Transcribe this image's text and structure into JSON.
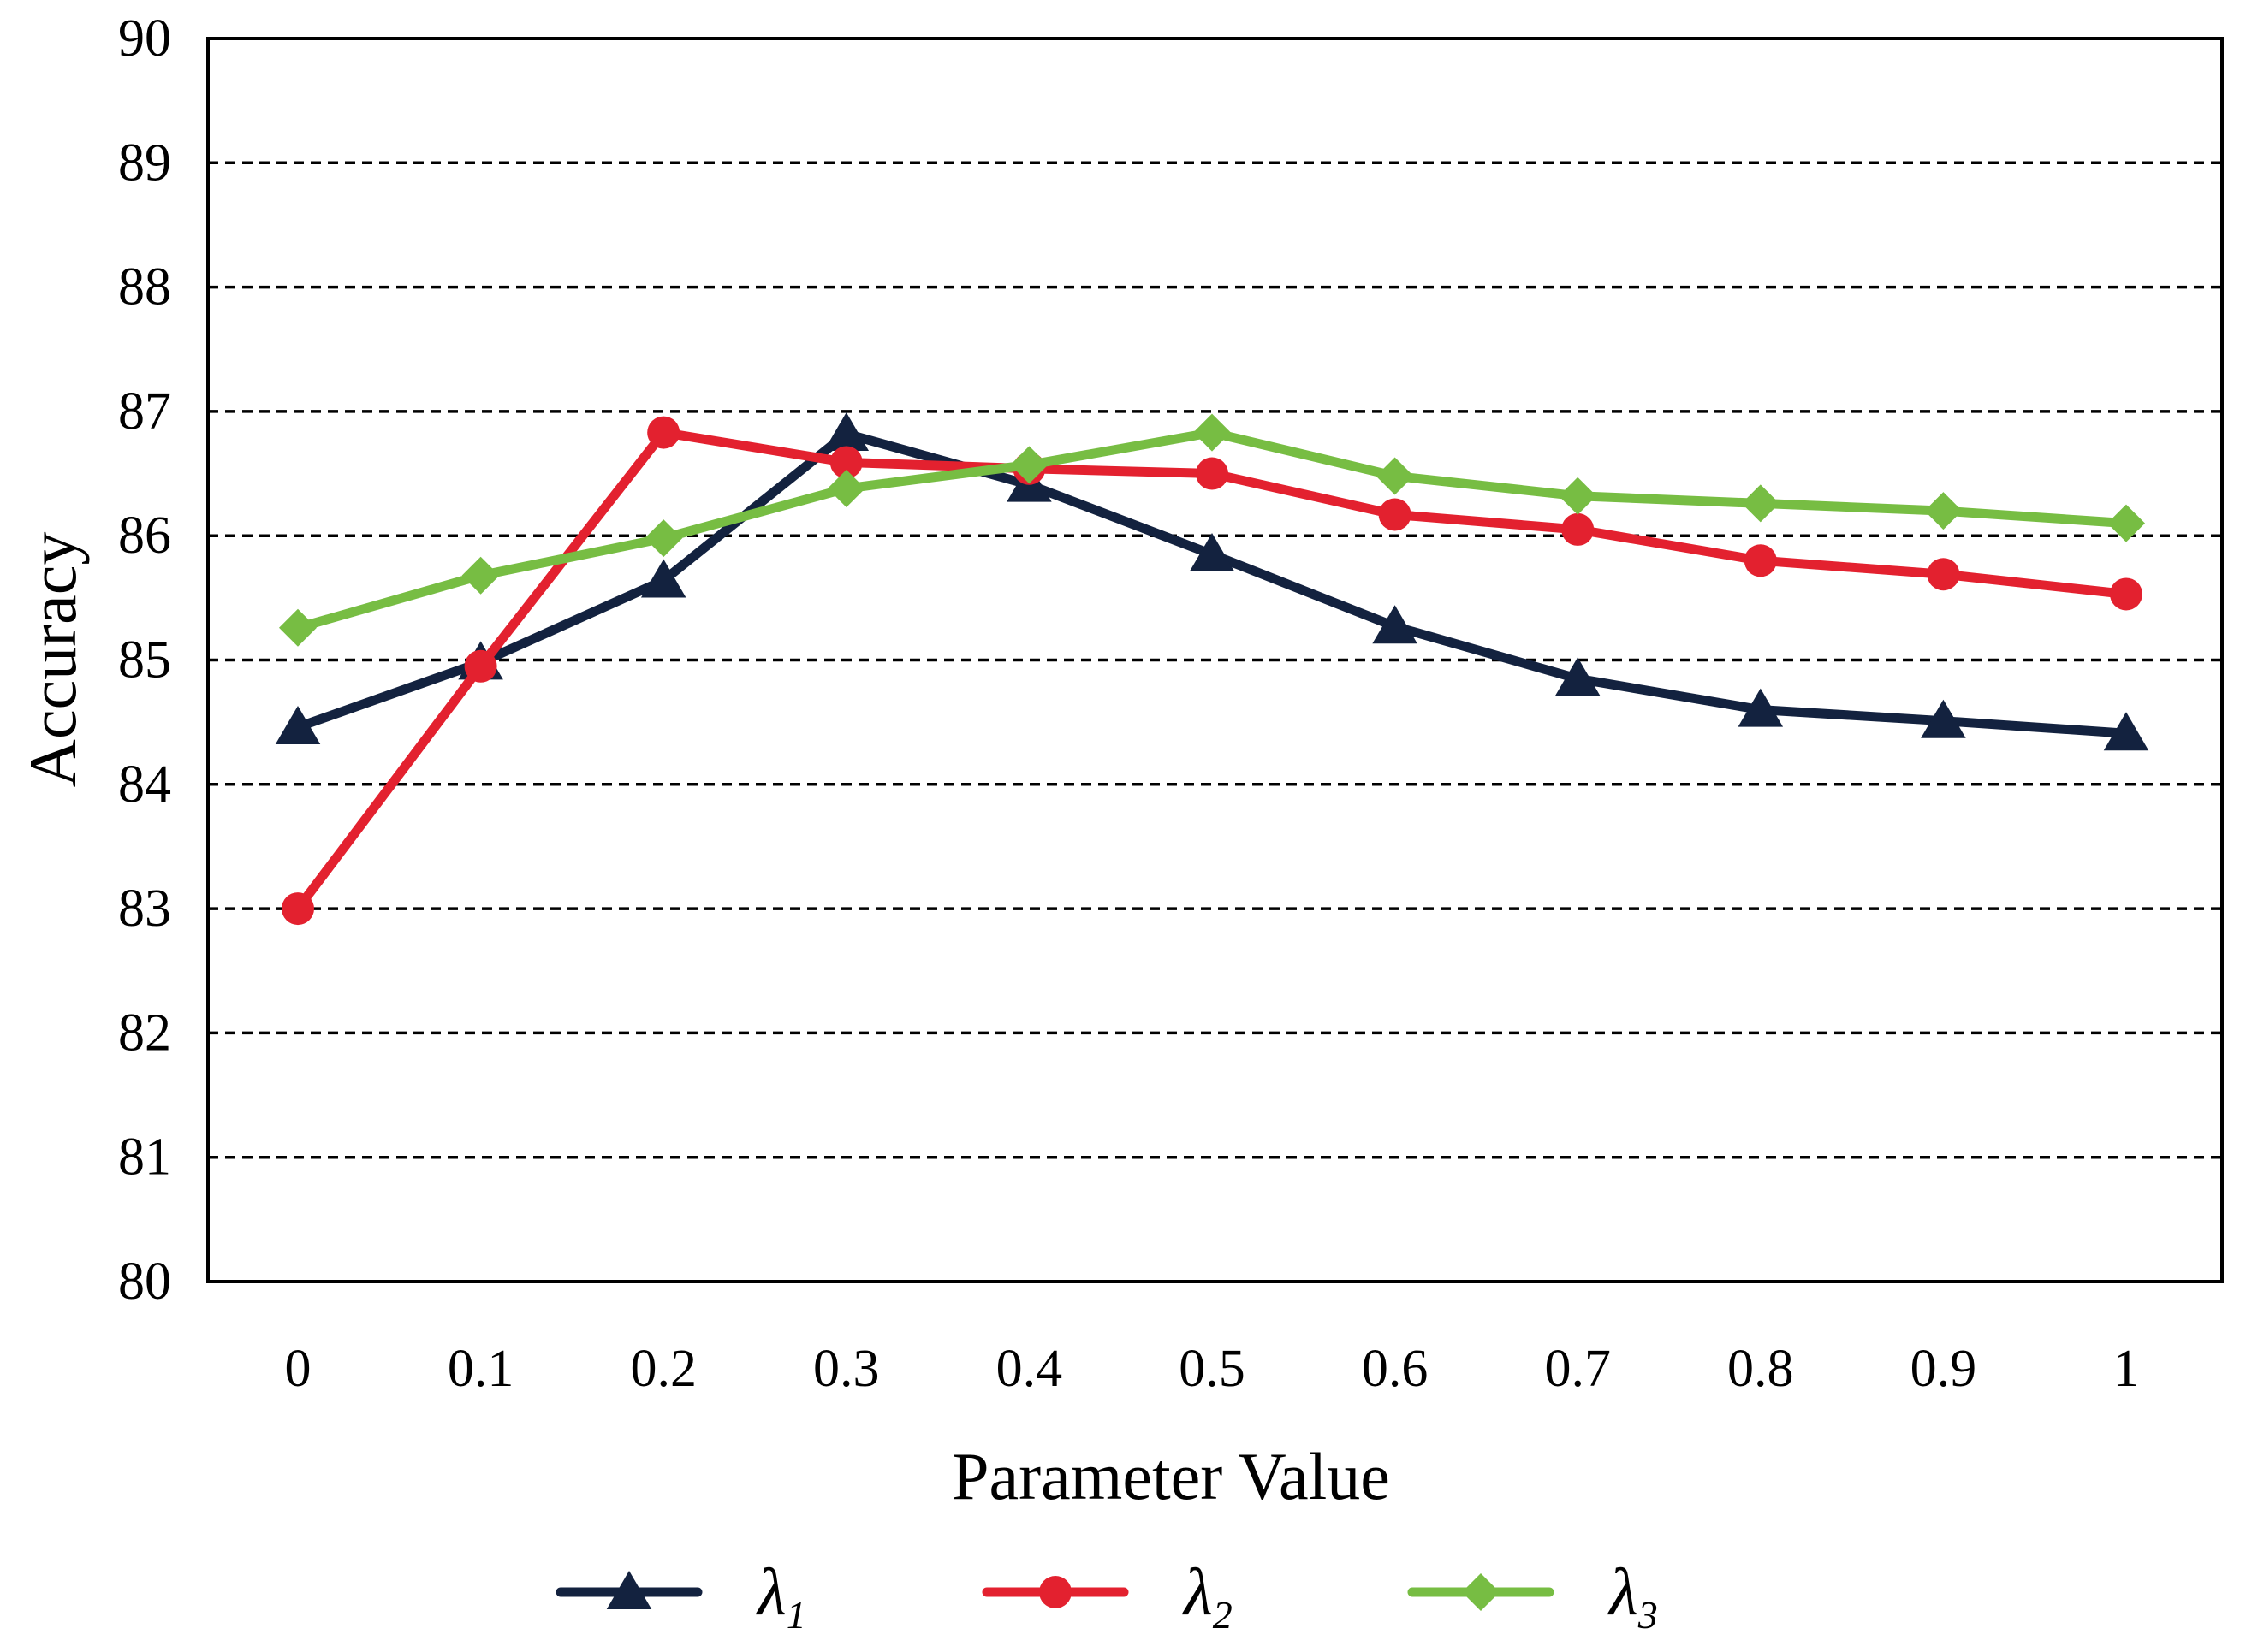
{
  "chart_data": {
    "type": "line",
    "title": "",
    "xlabel": "Parameter Value",
    "ylabel": "Accuracy",
    "categories": [
      "0",
      "0.1",
      "0.2",
      "0.3",
      "0.4",
      "0.5",
      "0.6",
      "0.7",
      "0.8",
      "0.9",
      "1"
    ],
    "ylim": [
      80,
      90
    ],
    "yticks": [
      "80",
      "81",
      "82",
      "83",
      "84",
      "85",
      "86",
      "87",
      "88",
      "89",
      "90"
    ],
    "grid": "horizontal dashed",
    "legend_position": "bottom",
    "series": [
      {
        "name": "λ1",
        "symbol": "λ",
        "subscript": "1",
        "color": "#13223f",
        "marker": "triangle",
        "values": [
          84.46,
          84.98,
          85.64,
          86.82,
          86.41,
          85.85,
          85.27,
          84.85,
          84.6,
          84.51,
          84.41
        ]
      },
      {
        "name": "λ2",
        "symbol": "λ",
        "subscript": "2",
        "color": "#e3212f",
        "marker": "circle",
        "values": [
          83.0,
          84.95,
          86.83,
          86.59,
          86.54,
          86.5,
          86.17,
          86.05,
          85.8,
          85.69,
          85.53
        ]
      },
      {
        "name": "λ3",
        "symbol": "λ",
        "subscript": "3",
        "color": "#77bd43",
        "marker": "diamond",
        "values": [
          85.26,
          85.68,
          85.98,
          86.38,
          86.57,
          86.83,
          86.48,
          86.32,
          86.26,
          86.2,
          86.1
        ]
      }
    ]
  }
}
